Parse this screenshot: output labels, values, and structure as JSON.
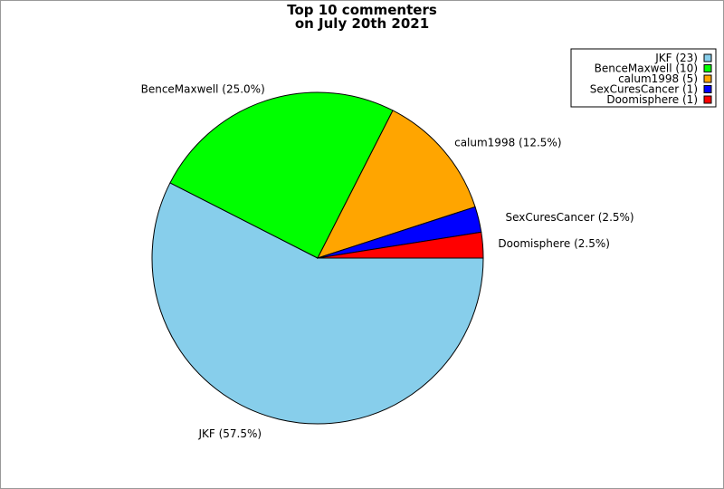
{
  "chart_data": {
    "type": "pie",
    "title_lines": [
      "Top 10 commenters",
      "on July 20th 2021"
    ],
    "slices": [
      {
        "name": "JKF",
        "value": 23,
        "percent_label": "JKF (57.5%)",
        "legend_label": "JKF (23)",
        "color": "#87ceeb"
      },
      {
        "name": "BenceMaxwell",
        "value": 10,
        "percent_label": "BenceMaxwell (25.0%)",
        "legend_label": "BenceMaxwell (10)",
        "color": "#00ff00"
      },
      {
        "name": "calum1998",
        "value": 5,
        "percent_label": "calum1998 (12.5%)",
        "legend_label": "calum1998 (5)",
        "color": "#ffa500"
      },
      {
        "name": "SexCuresCancer",
        "value": 1,
        "percent_label": "SexCuresCancer (2.5%)",
        "legend_label": "SexCuresCancer (1)",
        "color": "#0000ff"
      },
      {
        "name": "Doomisphere",
        "value": 1,
        "percent_label": "Doomisphere (2.5%)",
        "legend_label": "Doomisphere (1)",
        "color": "#ff0000"
      }
    ],
    "legend_position": "top-right"
  }
}
